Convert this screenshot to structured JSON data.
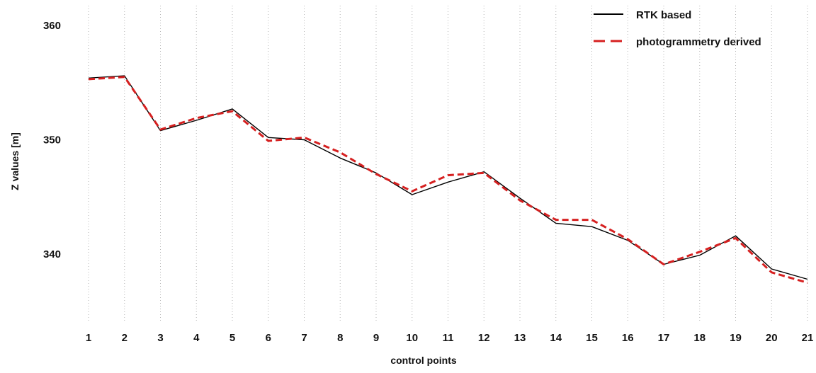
{
  "chart_data": {
    "type": "line",
    "xlabel": "control points",
    "ylabel": "Z values [m]",
    "categories": [
      "1",
      "2",
      "3",
      "4",
      "5",
      "6",
      "7",
      "8",
      "9",
      "10",
      "11",
      "12",
      "13",
      "14",
      "15",
      "16",
      "17",
      "18",
      "19",
      "20",
      "21"
    ],
    "yticks": [
      340,
      350,
      360
    ],
    "ylim": [
      334.5,
      362
    ],
    "grid": "vertical dotted lines at each control point",
    "legend": "top-right",
    "series": [
      {
        "name": "RTK based",
        "color": "#000000",
        "style": "solid",
        "values": [
          355.4,
          355.6,
          350.8,
          351.7,
          352.7,
          350.2,
          350.0,
          348.4,
          347.1,
          345.2,
          346.3,
          347.2,
          344.9,
          342.7,
          342.4,
          341.2,
          339.1,
          339.9,
          341.6,
          338.7,
          337.8
        ]
      },
      {
        "name": "photogrammetry derived",
        "color": "#d62020",
        "style": "dashed",
        "values": [
          355.3,
          355.5,
          350.9,
          351.9,
          352.5,
          349.9,
          350.2,
          348.9,
          347.0,
          345.5,
          346.9,
          347.1,
          344.7,
          343.0,
          343.0,
          341.3,
          339.1,
          340.2,
          341.4,
          338.4,
          337.5
        ]
      }
    ]
  }
}
